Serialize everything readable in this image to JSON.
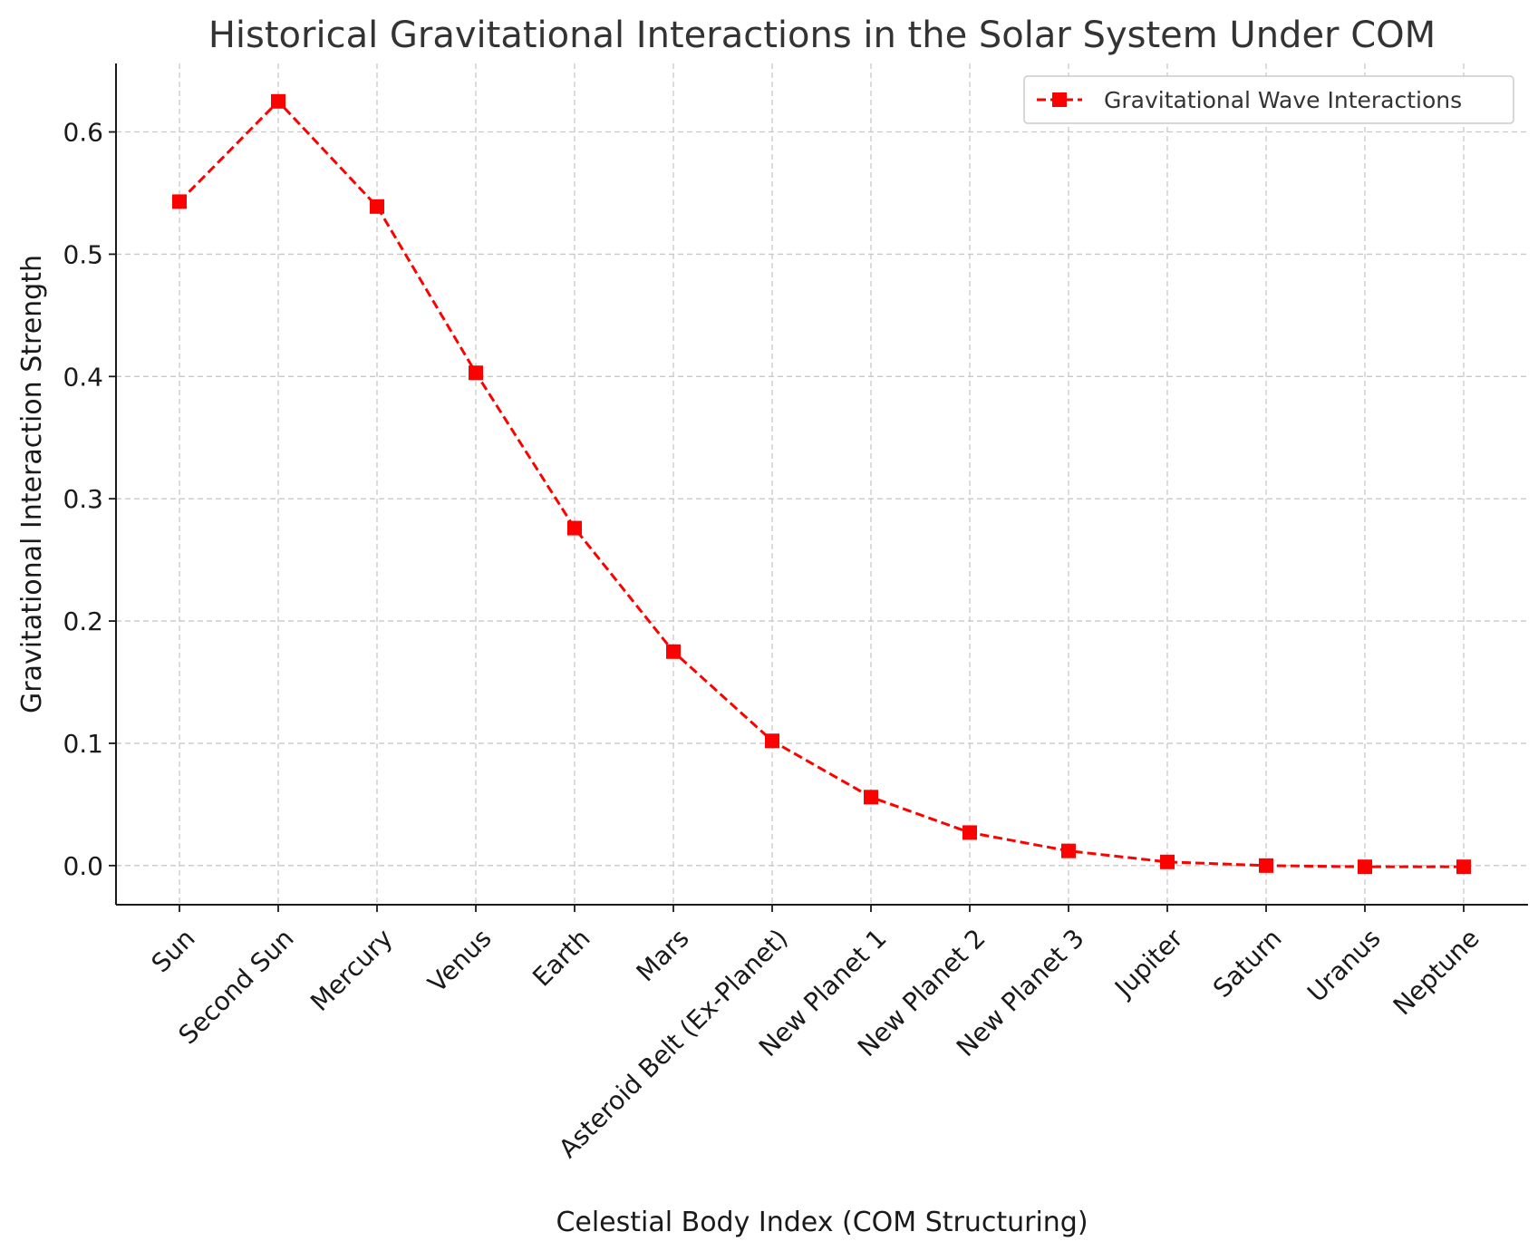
{
  "chart_data": {
    "type": "line",
    "title": "Historical Gravitational Interactions in the Solar System Under COM",
    "xlabel": "Celestial Body Index (COM Structuring)",
    "ylabel": "Gravitational Interaction Strength",
    "categories": [
      "Sun",
      "Second Sun",
      "Mercury",
      "Venus",
      "Earth",
      "Mars",
      "Asteroid Belt (Ex-Planet)",
      "New Planet 1",
      "New Planet 2",
      "New Planet 3",
      "Jupiter",
      "Saturn",
      "Uranus",
      "Neptune"
    ],
    "series": [
      {
        "name": "Gravitational Wave Interactions",
        "color": "#ff0000",
        "line_style": "dashed",
        "marker": "square",
        "values": [
          0.543,
          0.625,
          0.539,
          0.403,
          0.276,
          0.175,
          0.102,
          0.056,
          0.027,
          0.012,
          0.003,
          0.0,
          -0.001,
          -0.001
        ]
      }
    ],
    "ylim": [
      -0.032,
      0.656
    ],
    "yticks": [
      0.0,
      0.1,
      0.2,
      0.3,
      0.4,
      0.5,
      0.6
    ],
    "ytick_labels": [
      "0.0",
      "0.1",
      "0.2",
      "0.3",
      "0.4",
      "0.5",
      "0.6"
    ],
    "grid": true,
    "legend_position": "top-right"
  }
}
